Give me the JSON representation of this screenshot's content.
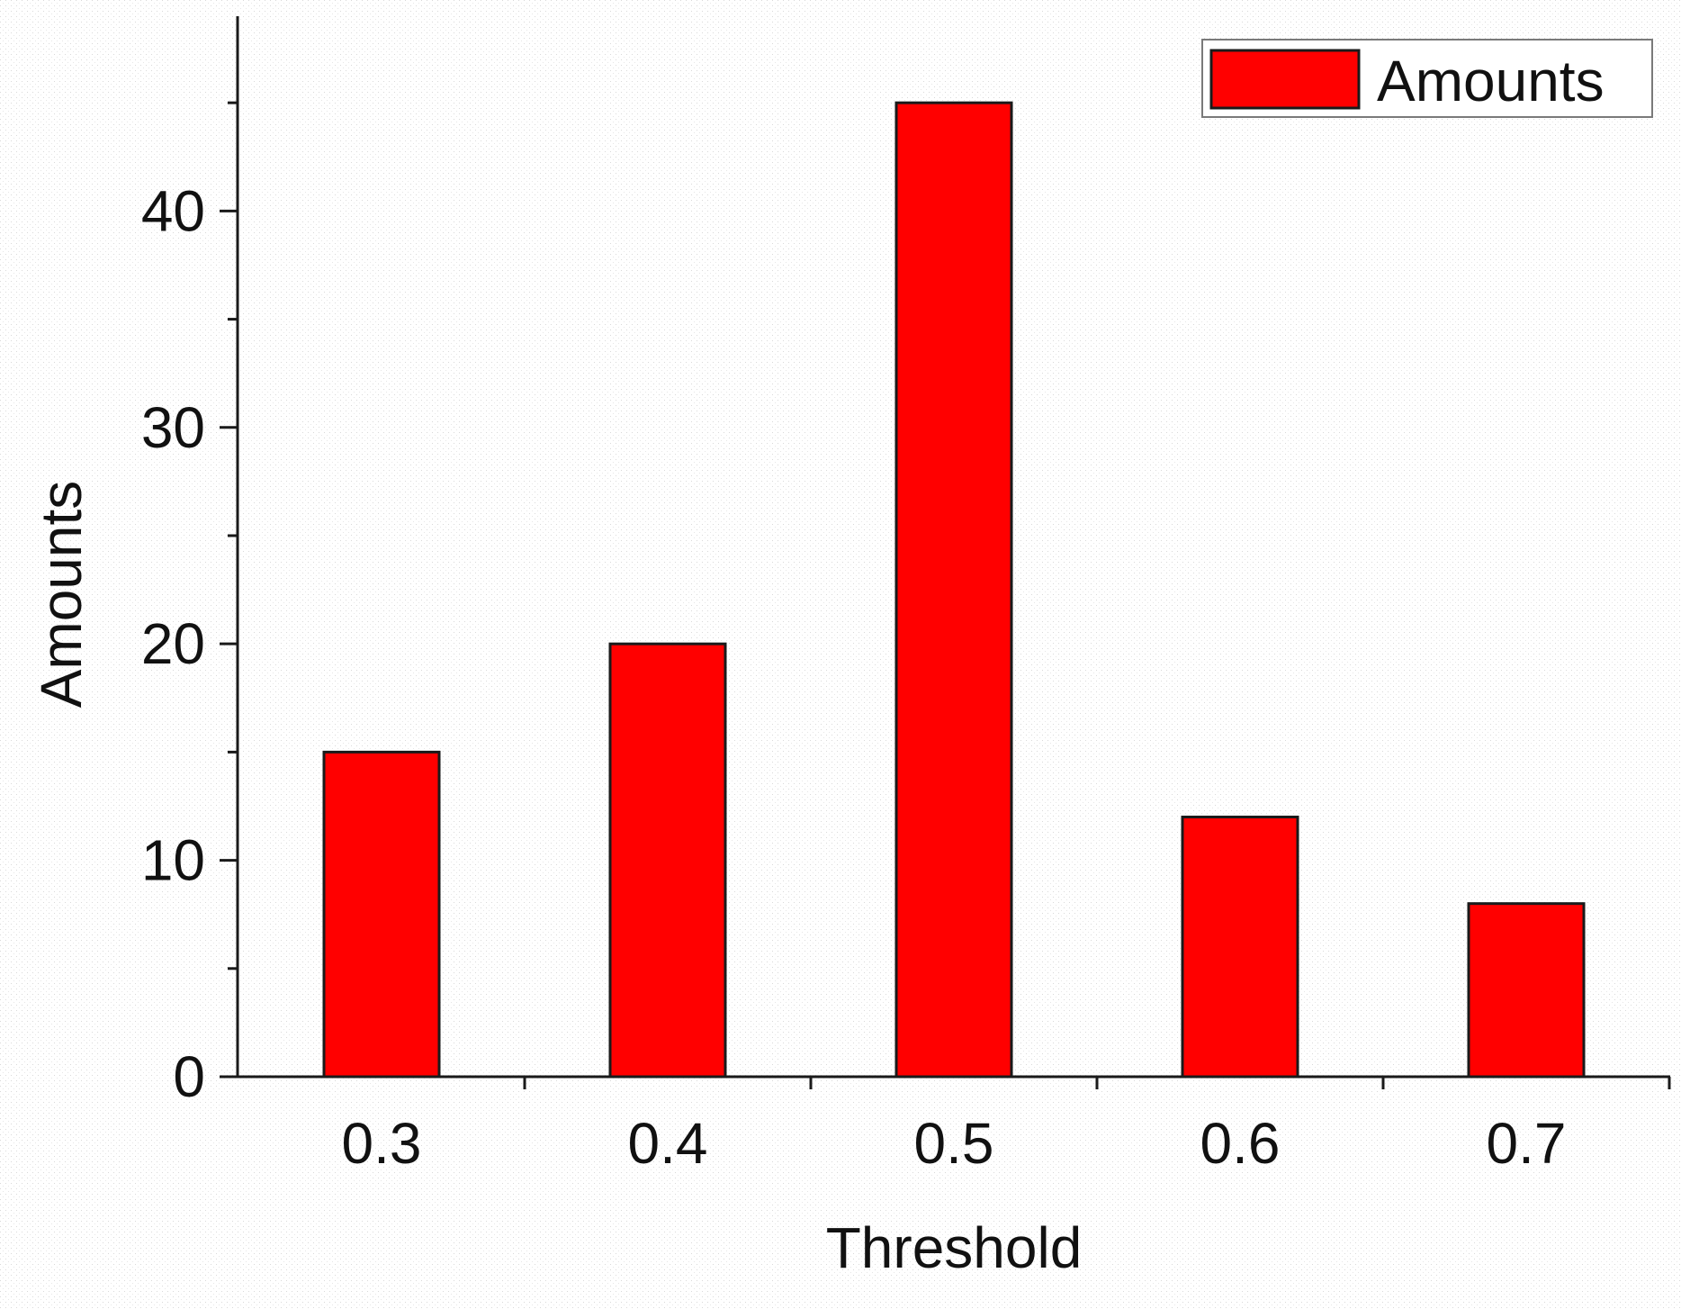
{
  "chart_data": {
    "type": "bar",
    "title": "",
    "xlabel": "Threshold",
    "ylabel": "Amounts",
    "categories": [
      "0.3",
      "0.4",
      "0.5",
      "0.6",
      "0.7"
    ],
    "series": [
      {
        "name": "Amounts",
        "values": [
          15,
          20,
          45,
          12,
          8
        ]
      }
    ],
    "ylim": [
      0,
      49
    ],
    "yticks": [
      0,
      10,
      20,
      30,
      40
    ],
    "y_minor_step": 5,
    "grid": false,
    "legend": {
      "position": "top-right",
      "entries": [
        "Amounts"
      ]
    },
    "colors": {
      "bar_fill": "#ff0000",
      "bar_stroke": "#1a1a1a",
      "axis": "#1a1a1a",
      "background": "#ffffff"
    }
  }
}
